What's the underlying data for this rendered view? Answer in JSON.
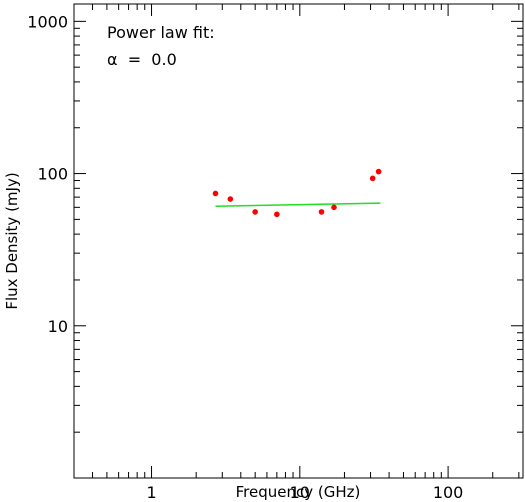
{
  "chart_data": {
    "type": "scatter",
    "xlabel": "Frequency (GHz)",
    "ylabel": "Flux Density (mJy)",
    "xscale": "log",
    "yscale": "log",
    "xlim": [
      0.3,
      320
    ],
    "ylim": [
      1,
      1300
    ],
    "xticks": [
      {
        "value": 1,
        "label": "1"
      },
      {
        "value": 10,
        "label": "10"
      },
      {
        "value": 100,
        "label": "100"
      }
    ],
    "yticks": [
      {
        "value": 10,
        "label": "10"
      },
      {
        "value": 100,
        "label": "100"
      },
      {
        "value": 1000,
        "label": "1000"
      }
    ],
    "grid": false,
    "points": [
      {
        "x": 2.7,
        "y": 74
      },
      {
        "x": 3.4,
        "y": 68
      },
      {
        "x": 5.0,
        "y": 56
      },
      {
        "x": 7.0,
        "y": 54
      },
      {
        "x": 14.0,
        "y": 56
      },
      {
        "x": 17.0,
        "y": 60
      },
      {
        "x": 31.0,
        "y": 93
      },
      {
        "x": 34.0,
        "y": 103
      }
    ],
    "fit_line": {
      "x": [
        2.7,
        35
      ],
      "y": [
        61,
        64
      ]
    },
    "annotations": [
      "Power law fit:",
      "α  =  0.0"
    ],
    "colors": {
      "points": "#ff0000",
      "fit": "#22dd22",
      "axes": "#000000"
    }
  }
}
